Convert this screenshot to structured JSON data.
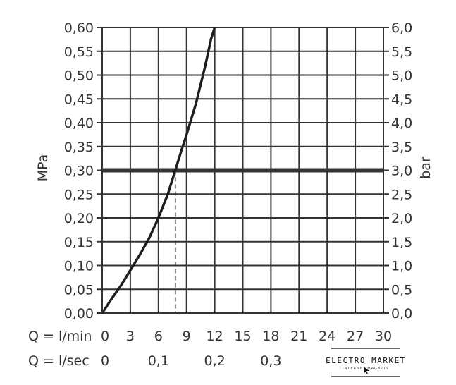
{
  "chart_data": {
    "type": "line",
    "ylabel_left": "MPa",
    "ylabel_right": "bar",
    "x_flow_label_min": "Q = l/min",
    "x_flow_label_sec": "Q = l/sec",
    "xlim": [
      0,
      30
    ],
    "ylim": [
      0,
      0.6
    ],
    "x_ticks_min": [
      "0",
      "3",
      "6",
      "9",
      "12",
      "15",
      "18",
      "21",
      "24",
      "27",
      "30"
    ],
    "x_ticks_min_values": [
      0,
      3,
      6,
      9,
      12,
      15,
      18,
      21,
      24,
      27,
      30
    ],
    "x_ticks_sec": [
      "0",
      "0,1",
      "0,2",
      "0,3"
    ],
    "x_ticks_sec_values": [
      0,
      0.1,
      0.2,
      0.3
    ],
    "y_ticks_left": [
      "0,00",
      "0,05",
      "0,10",
      "0,15",
      "0,20",
      "0,25",
      "0,30",
      "0,35",
      "0,40",
      "0,45",
      "0,50",
      "0,55",
      "0,60"
    ],
    "y_ticks_right": [
      "0,0",
      "0,5",
      "1,0",
      "1,5",
      "2,0",
      "2,5",
      "3,0",
      "3,5",
      "4,0",
      "4,5",
      "5,0",
      "5,5",
      "6,0"
    ],
    "y_tick_values": [
      0,
      0.05,
      0.1,
      0.15,
      0.2,
      0.25,
      0.3,
      0.35,
      0.4,
      0.45,
      0.5,
      0.55,
      0.6
    ],
    "grid": true,
    "series": [
      {
        "values": [
          [
            0,
            0
          ],
          [
            1,
            0.03
          ],
          [
            2,
            0.058
          ],
          [
            3,
            0.09
          ],
          [
            4,
            0.122
          ],
          [
            5,
            0.157
          ],
          [
            6,
            0.2
          ],
          [
            7,
            0.25
          ],
          [
            7.8,
            0.3
          ],
          [
            8.5,
            0.345
          ],
          [
            9,
            0.375
          ],
          [
            10,
            0.44
          ],
          [
            11,
            0.52
          ],
          [
            11.6,
            0.575
          ],
          [
            12,
            0.6
          ]
        ]
      }
    ],
    "reference_line_y": 0.3,
    "reference_marker_x": 7.8,
    "watermark": {
      "title": "ELECTRO MARKET",
      "subtitle": "INTERNET-MAGAZIN"
    }
  }
}
